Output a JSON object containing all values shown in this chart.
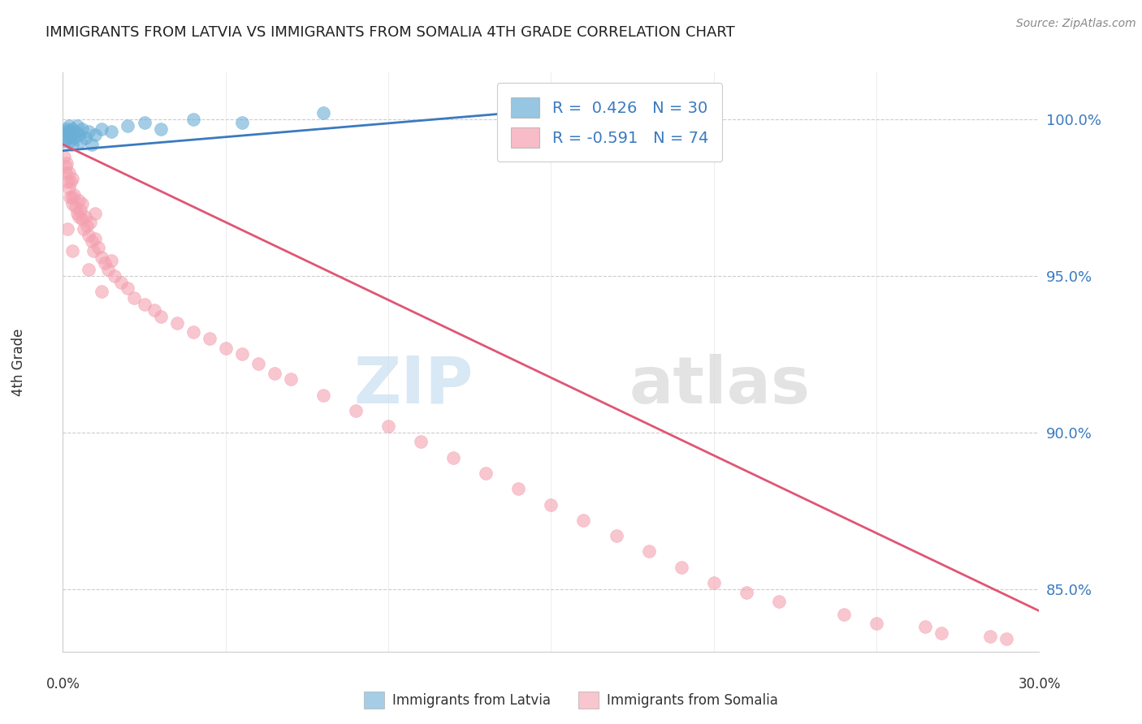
{
  "title": "IMMIGRANTS FROM LATVIA VS IMMIGRANTS FROM SOMALIA 4TH GRADE CORRELATION CHART",
  "source": "Source: ZipAtlas.com",
  "ylabel": "4th Grade",
  "y_ticks": [
    100.0,
    95.0,
    90.0,
    85.0
  ],
  "y_tick_labels": [
    "100.0%",
    "95.0%",
    "90.0%",
    "85.0%"
  ],
  "xlim": [
    0.0,
    30.0
  ],
  "ylim": [
    83.0,
    101.5
  ],
  "legend_r1": "R =  0.426",
  "legend_n1": "N = 30",
  "legend_r2": "R = -0.591",
  "legend_n2": "N = 74",
  "blue_color": "#6aaed6",
  "pink_color": "#f4a0b0",
  "blue_line_color": "#3a7abf",
  "pink_line_color": "#e05575",
  "watermark_zip": "ZIP",
  "watermark_atlas": "atlas",
  "blue_line_x": [
    0.0,
    16.0
  ],
  "blue_line_y": [
    99.0,
    100.4
  ],
  "pink_line_x": [
    0.0,
    30.0
  ],
  "pink_line_y": [
    99.2,
    84.3
  ],
  "latvia_x": [
    0.05,
    0.08,
    0.1,
    0.12,
    0.15,
    0.18,
    0.2,
    0.22,
    0.25,
    0.28,
    0.3,
    0.35,
    0.4,
    0.45,
    0.5,
    0.55,
    0.6,
    0.7,
    0.8,
    0.9,
    1.0,
    1.2,
    1.5,
    2.0,
    2.5,
    3.0,
    4.0,
    5.5,
    8.0,
    16.0
  ],
  "latvia_y": [
    99.3,
    99.6,
    99.5,
    99.7,
    99.4,
    99.8,
    99.6,
    99.3,
    99.5,
    99.2,
    99.7,
    99.4,
    99.6,
    99.8,
    99.5,
    99.3,
    99.7,
    99.4,
    99.6,
    99.2,
    99.5,
    99.7,
    99.6,
    99.8,
    99.9,
    99.7,
    100.0,
    99.9,
    100.2,
    100.4
  ],
  "somalia_x": [
    0.05,
    0.08,
    0.1,
    0.12,
    0.15,
    0.18,
    0.2,
    0.22,
    0.25,
    0.28,
    0.3,
    0.3,
    0.35,
    0.4,
    0.45,
    0.5,
    0.55,
    0.6,
    0.6,
    0.65,
    0.7,
    0.75,
    0.8,
    0.85,
    0.9,
    0.95,
    1.0,
    1.0,
    1.1,
    1.2,
    1.3,
    1.4,
    1.5,
    1.6,
    1.8,
    2.0,
    2.2,
    2.5,
    2.8,
    3.0,
    3.5,
    4.0,
    4.5,
    5.0,
    5.5,
    6.0,
    6.5,
    7.0,
    8.0,
    9.0,
    10.0,
    11.0,
    12.0,
    13.0,
    14.0,
    15.0,
    16.0,
    17.0,
    18.0,
    19.0,
    20.0,
    21.0,
    22.0,
    24.0,
    25.0,
    26.5,
    27.0,
    28.5,
    29.0,
    0.15,
    0.3,
    0.5,
    0.8,
    1.2
  ],
  "somalia_y": [
    98.8,
    98.5,
    98.3,
    98.6,
    98.0,
    98.3,
    97.8,
    97.5,
    98.0,
    97.3,
    97.5,
    98.1,
    97.6,
    97.2,
    97.0,
    97.4,
    97.1,
    96.8,
    97.3,
    96.5,
    96.9,
    96.6,
    96.3,
    96.7,
    96.1,
    95.8,
    96.2,
    97.0,
    95.9,
    95.6,
    95.4,
    95.2,
    95.5,
    95.0,
    94.8,
    94.6,
    94.3,
    94.1,
    93.9,
    93.7,
    93.5,
    93.2,
    93.0,
    92.7,
    92.5,
    92.2,
    91.9,
    91.7,
    91.2,
    90.7,
    90.2,
    89.7,
    89.2,
    88.7,
    88.2,
    87.7,
    87.2,
    86.7,
    86.2,
    85.7,
    85.2,
    84.9,
    84.6,
    84.2,
    83.9,
    83.8,
    83.6,
    83.5,
    83.4,
    96.5,
    95.8,
    96.9,
    95.2,
    94.5
  ]
}
